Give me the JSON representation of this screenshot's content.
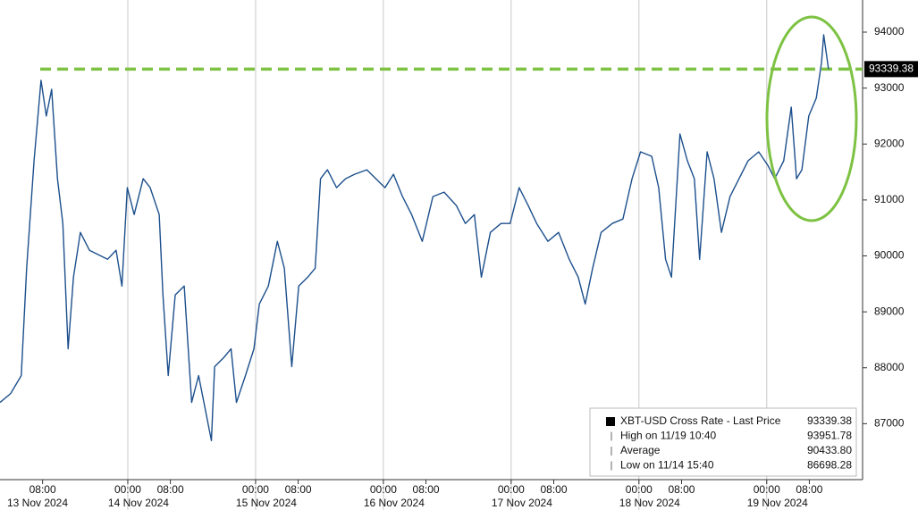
{
  "chart_data": {
    "type": "line",
    "xlim": [
      0,
      162
    ],
    "ylim": [
      86000,
      94575
    ],
    "yticks": [
      87000,
      88000,
      89000,
      90000,
      91000,
      92000,
      93000,
      94000
    ],
    "xticks": [
      {
        "value": 8,
        "label": "08:00"
      },
      {
        "value": 24,
        "label": "00:00"
      },
      {
        "value": 32,
        "label": "08:00"
      },
      {
        "value": 48,
        "label": "00:00"
      },
      {
        "value": 56,
        "label": "08:00"
      },
      {
        "value": 72,
        "label": "00:00"
      },
      {
        "value": 80,
        "label": "08:00"
      },
      {
        "value": 96,
        "label": "00:00"
      },
      {
        "value": 104,
        "label": "08:00"
      },
      {
        "value": 120,
        "label": "00:00"
      },
      {
        "value": 128,
        "label": "08:00"
      },
      {
        "value": 144,
        "label": "00:00"
      },
      {
        "value": 152,
        "label": "08:00"
      }
    ],
    "date_ticks": [
      {
        "value": 0,
        "label": "13 Nov 2024"
      },
      {
        "value": 24,
        "label": "14 Nov 2024"
      },
      {
        "value": 48,
        "label": "15 Nov 2024"
      },
      {
        "value": 72,
        "label": "16 Nov 2024"
      },
      {
        "value": 96,
        "label": "17 Nov 2024"
      },
      {
        "value": 120,
        "label": "18 Nov 2024"
      },
      {
        "value": 144,
        "label": "19 Nov 2024"
      }
    ],
    "reference_line": {
      "value": 93339.38,
      "color": "#7dc242"
    },
    "series": [
      {
        "name": "XBT-USD Cross Rate - Last Price",
        "color": "#1c4f8c",
        "x": [
          0,
          2.0,
          4.0,
          5.0,
          6.4,
          7.7,
          8.7,
          9.7,
          10.8,
          11.8,
          12.8,
          13.8,
          15.1,
          16.8,
          18.5,
          20.2,
          21.8,
          22.9,
          23.9,
          25.2,
          26.9,
          28.2,
          29.9,
          30.6,
          31.6,
          32.9,
          34.6,
          36.0,
          37.3,
          39.7,
          40.3,
          42.0,
          43.4,
          44.4,
          46.1,
          47.7,
          48.7,
          50.4,
          52.1,
          53.4,
          54.8,
          56.1,
          57.8,
          59.2,
          60.2,
          61.5,
          63.2,
          64.9,
          66.6,
          68.9,
          70.6,
          72.3,
          73.9,
          75.6,
          77.3,
          79.3,
          81.3,
          83.4,
          85.7,
          87.4,
          89.1,
          90.4,
          92.1,
          94.1,
          95.8,
          97.5,
          99.2,
          100.8,
          102.9,
          104.9,
          106.9,
          108.6,
          109.9,
          111.3,
          112.9,
          115.0,
          117.0,
          118.7,
          120.3,
          122.4,
          123.7,
          125.0,
          126.1,
          127.7,
          129.1,
          130.4,
          131.4,
          132.8,
          134.1,
          135.5,
          137.1,
          138.8,
          140.5,
          142.5,
          144.2,
          145.5,
          147.2,
          148.6,
          149.6,
          150.6,
          151.9,
          153.3,
          154.3,
          154.7,
          155.6
        ],
        "values": [
          87380,
          87540,
          87860,
          89780,
          91700,
          93140,
          92500,
          92980,
          91380,
          90580,
          88340,
          89620,
          90420,
          90100,
          90020,
          89940,
          90100,
          89460,
          91220,
          90740,
          91380,
          91220,
          90740,
          89300,
          87860,
          89300,
          89460,
          87380,
          87860,
          86698.28,
          88020,
          88180,
          88340,
          87380,
          87860,
          88340,
          89140,
          89460,
          90260,
          89780,
          88020,
          89460,
          89620,
          89780,
          91380,
          91540,
          91220,
          91380,
          91460,
          91540,
          91380,
          91220,
          91460,
          91060,
          90740,
          90260,
          91060,
          91140,
          90900,
          90580,
          90740,
          89620,
          90420,
          90580,
          90580,
          91220,
          90900,
          90580,
          90260,
          90420,
          89940,
          89620,
          89140,
          89780,
          90420,
          90580,
          90660,
          91380,
          91860,
          91780,
          91220,
          89940,
          89620,
          92180,
          91700,
          91380,
          89940,
          91860,
          91380,
          90420,
          91060,
          91380,
          91700,
          91860,
          91620,
          91380,
          91700,
          92660,
          91380,
          91540,
          92500,
          92820,
          93460,
          93951.78,
          93339.38
        ]
      }
    ],
    "legend_entries": [
      {
        "name": "XBT-USD Cross Rate - Last Price",
        "value": 93339.38
      },
      {
        "name": "High on 11/19 10:40",
        "value": 93951.78
      },
      {
        "name": "Average",
        "value": 90433.8,
        "value_label": "90433.80"
      },
      {
        "name": "Low on 11/14 15:40",
        "value": 86698.28
      }
    ]
  }
}
